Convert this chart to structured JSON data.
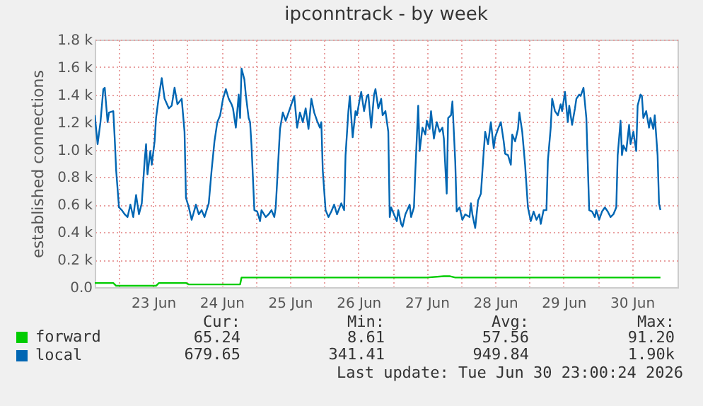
{
  "chart_data": {
    "type": "line",
    "title": "ipconntrack - by week",
    "ylabel": "established connections",
    "xlim": [
      "2026-06-22T15:30",
      "2026-07-01T04:00"
    ],
    "xticks": [
      {
        "value": "2026-06-23T00:00",
        "label": null
      },
      {
        "value": "2026-06-23T12:00",
        "label": "23 Jun"
      },
      {
        "value": "2026-06-24T00:00",
        "label": null
      },
      {
        "value": "2026-06-24T12:00",
        "label": "24 Jun"
      },
      {
        "value": "2026-06-25T00:00",
        "label": null
      },
      {
        "value": "2026-06-25T12:00",
        "label": "25 Jun"
      },
      {
        "value": "2026-06-26T00:00",
        "label": null
      },
      {
        "value": "2026-06-26T12:00",
        "label": "26 Jun"
      },
      {
        "value": "2026-06-27T00:00",
        "label": null
      },
      {
        "value": "2026-06-27T12:00",
        "label": "27 Jun"
      },
      {
        "value": "2026-06-28T00:00",
        "label": null
      },
      {
        "value": "2026-06-28T12:00",
        "label": "28 Jun"
      },
      {
        "value": "2026-06-29T00:00",
        "label": null
      },
      {
        "value": "2026-06-29T12:00",
        "label": "29 Jun"
      },
      {
        "value": "2026-06-30T00:00",
        "label": null
      },
      {
        "value": "2026-06-30T12:00",
        "label": "30 Jun"
      }
    ],
    "ylim": [
      0,
      1800
    ],
    "yticks": [
      {
        "value": 0,
        "label": "0.0"
      },
      {
        "value": 200,
        "label": "0.2 k"
      },
      {
        "value": 400,
        "label": "0.4 k"
      },
      {
        "value": 600,
        "label": "0.6 k"
      },
      {
        "value": 800,
        "label": "0.8 k"
      },
      {
        "value": 1000,
        "label": "1.0 k"
      },
      {
        "value": 1200,
        "label": "1.2 k"
      },
      {
        "value": 1400,
        "label": "1.4 k"
      },
      {
        "value": 1600,
        "label": "1.6 k"
      },
      {
        "value": 1800,
        "label": "1.8 k"
      }
    ],
    "grid": true,
    "legend": "bottom",
    "line_style": "solid",
    "series": [
      {
        "name": "forward",
        "color": "#00cc00",
        "x": [
          "2026-06-22T15:30",
          "2026-06-22T22:00",
          "2026-06-22T23:00",
          "2026-06-23T00:00",
          "2026-06-23T13:00",
          "2026-06-23T14:00",
          "2026-06-23T23:30",
          "2026-06-24T00:30",
          "2026-06-24T18:30",
          "2026-06-24T19:00",
          "2026-06-25T12:00",
          "2026-06-26T00:00",
          "2026-06-26T12:00",
          "2026-06-27T12:00",
          "2026-06-27T18:00",
          "2026-06-27T20:00",
          "2026-06-27T22:00",
          "2026-06-28T12:00",
          "2026-06-29T12:00",
          "2026-06-30T12:00",
          "2026-06-30T22:00"
        ],
        "values": [
          30,
          30,
          10,
          10,
          10,
          30,
          30,
          20,
          20,
          70,
          70,
          70,
          70,
          70,
          80,
          80,
          70,
          70,
          70,
          70,
          70
        ]
      },
      {
        "name": "local",
        "color": "#0066b3",
        "x": [
          "2026-06-22T15:30",
          "2026-06-22T16:30",
          "2026-06-22T17:30",
          "2026-06-22T18:30",
          "2026-06-22T19:00",
          "2026-06-22T20:00",
          "2026-06-22T20:30",
          "2026-06-22T22:00",
          "2026-06-22T22:30",
          "2026-06-22T23:00",
          "2026-06-23T00:00",
          "2026-06-23T01:00",
          "2026-06-23T02:00",
          "2026-06-23T03:00",
          "2026-06-23T04:00",
          "2026-06-23T05:00",
          "2026-06-23T06:00",
          "2026-06-23T07:00",
          "2026-06-23T08:00",
          "2026-06-23T09:00",
          "2026-06-23T09:30",
          "2026-06-23T10:00",
          "2026-06-23T11:00",
          "2026-06-23T11:30",
          "2026-06-23T12:30",
          "2026-06-23T13:00",
          "2026-06-23T14:00",
          "2026-06-23T15:00",
          "2026-06-23T16:00",
          "2026-06-23T17:30",
          "2026-06-23T18:30",
          "2026-06-23T19:30",
          "2026-06-23T20:30",
          "2026-06-23T22:00",
          "2026-06-23T23:00",
          "2026-06-23T23:30",
          "2026-06-24T00:30",
          "2026-06-24T01:30",
          "2026-06-24T03:00",
          "2026-06-24T04:00",
          "2026-06-24T05:00",
          "2026-06-24T06:00",
          "2026-06-24T07:30",
          "2026-06-24T08:30",
          "2026-06-24T09:30",
          "2026-06-24T10:30",
          "2026-06-24T11:30",
          "2026-06-24T12:30",
          "2026-06-24T13:30",
          "2026-06-24T14:30",
          "2026-06-24T15:30",
          "2026-06-24T16:00",
          "2026-06-24T17:00",
          "2026-06-24T18:00",
          "2026-06-24T18:30",
          "2026-06-24T19:00",
          "2026-06-24T20:00",
          "2026-06-24T20:30",
          "2026-06-24T21:30",
          "2026-06-24T22:00",
          "2026-06-24T22:30",
          "2026-06-24T23:30",
          "2026-06-25T00:30",
          "2026-06-25T01:30",
          "2026-06-25T02:00",
          "2026-06-25T03:30",
          "2026-06-25T04:30",
          "2026-06-25T05:30",
          "2026-06-25T06:30",
          "2026-06-25T07:00",
          "2026-06-25T08:00",
          "2026-06-25T08:30",
          "2026-06-25T09:30",
          "2026-06-25T10:30",
          "2026-06-25T11:30",
          "2026-06-25T12:30",
          "2026-06-25T13:30",
          "2026-06-25T14:30",
          "2026-06-25T15:30",
          "2026-06-25T16:30",
          "2026-06-25T17:30",
          "2026-06-25T18:30",
          "2026-06-25T19:30",
          "2026-06-25T20:30",
          "2026-06-25T21:30",
          "2026-06-25T22:30",
          "2026-06-25T23:00",
          "2026-06-25T23:30",
          "2026-06-26T00:30",
          "2026-06-26T01:30",
          "2026-06-26T02:30",
          "2026-06-26T03:30",
          "2026-06-26T04:30",
          "2026-06-26T06:00",
          "2026-06-26T07:00",
          "2026-06-26T07:30",
          "2026-06-26T08:30",
          "2026-06-26T09:00",
          "2026-06-26T10:00",
          "2026-06-26T11:00",
          "2026-06-26T11:30",
          "2026-06-26T12:30",
          "2026-06-26T13:00",
          "2026-06-26T14:00",
          "2026-06-26T15:00",
          "2026-06-26T15:30",
          "2026-06-26T16:30",
          "2026-06-26T17:30",
          "2026-06-26T18:00",
          "2026-06-26T19:00",
          "2026-06-26T20:00",
          "2026-06-26T20:30",
          "2026-06-26T21:30",
          "2026-06-26T22:30",
          "2026-06-26T23:00",
          "2026-06-26T23:30",
          "2026-06-27T00:30",
          "2026-06-27T01:30",
          "2026-06-27T02:00",
          "2026-06-27T03:00",
          "2026-06-27T03:30",
          "2026-06-27T04:30",
          "2026-06-27T06:00",
          "2026-06-27T06:30",
          "2026-06-27T07:30",
          "2026-06-27T08:00",
          "2026-06-27T09:00",
          "2026-06-27T09:30",
          "2026-06-27T10:30",
          "2026-06-27T11:30",
          "2026-06-27T12:00",
          "2026-06-27T13:00",
          "2026-06-27T13:30",
          "2026-06-27T14:30",
          "2026-06-27T15:30",
          "2026-06-27T16:30",
          "2026-06-27T17:30",
          "2026-06-27T18:00",
          "2026-06-27T19:00",
          "2026-06-27T19:30",
          "2026-06-27T20:30",
          "2026-06-27T21:00",
          "2026-06-27T22:00",
          "2026-06-27T22:30",
          "2026-06-27T23:30",
          "2026-06-28T00:30",
          "2026-06-28T01:30",
          "2026-06-28T03:00",
          "2026-06-28T03:30",
          "2026-06-28T04:00",
          "2026-06-28T05:00",
          "2026-06-28T06:00",
          "2026-06-28T07:00",
          "2026-06-28T08:00",
          "2026-06-28T08:30",
          "2026-06-28T09:30",
          "2026-06-28T10:30",
          "2026-06-28T11:30",
          "2026-06-28T12:00",
          "2026-06-28T13:00",
          "2026-06-28T14:00",
          "2026-06-28T15:00",
          "2026-06-28T15:30",
          "2026-06-28T16:30",
          "2026-06-28T17:30",
          "2026-06-28T18:00",
          "2026-06-28T19:00",
          "2026-06-28T20:00",
          "2026-06-28T20:30",
          "2026-06-28T21:30",
          "2026-06-28T22:30",
          "2026-06-28T23:30",
          "2026-06-29T00:30",
          "2026-06-29T01:30",
          "2026-06-29T02:30",
          "2026-06-29T03:30",
          "2026-06-29T04:00",
          "2026-06-29T05:00",
          "2026-06-29T06:00",
          "2026-06-29T06:30",
          "2026-06-29T07:30",
          "2026-06-29T08:00",
          "2026-06-29T09:00",
          "2026-06-29T10:00",
          "2026-06-29T11:00",
          "2026-06-29T11:30",
          "2026-06-29T12:30",
          "2026-06-29T13:30",
          "2026-06-29T14:00",
          "2026-06-29T15:00",
          "2026-06-29T16:00",
          "2026-06-29T16:30",
          "2026-06-29T17:30",
          "2026-06-29T18:00",
          "2026-06-29T19:00",
          "2026-06-29T20:00",
          "2026-06-29T21:00",
          "2026-06-29T22:00",
          "2026-06-29T23:00",
          "2026-06-29T23:30",
          "2026-06-30T00:30",
          "2026-06-30T01:30",
          "2026-06-30T02:30",
          "2026-06-30T03:30",
          "2026-06-30T04:30",
          "2026-06-30T05:30",
          "2026-06-30T06:30",
          "2026-06-30T07:00",
          "2026-06-30T08:00",
          "2026-06-30T08:30",
          "2026-06-30T09:00",
          "2026-06-30T10:00",
          "2026-06-30T11:00",
          "2026-06-30T11:30",
          "2026-06-30T12:30",
          "2026-06-30T13:30",
          "2026-06-30T14:00",
          "2026-06-30T15:00",
          "2026-06-30T15:30",
          "2026-06-30T16:00",
          "2026-06-30T17:00",
          "2026-06-30T18:00",
          "2026-06-30T18:30",
          "2026-06-30T19:30",
          "2026-06-30T20:00",
          "2026-06-30T21:00",
          "2026-06-30T21:30",
          "2026-06-30T22:00"
        ],
        "values": [
          1250,
          1040,
          1200,
          1440,
          1450,
          1200,
          1270,
          1280,
          1080,
          850,
          580,
          560,
          530,
          510,
          600,
          510,
          670,
          530,
          610,
          920,
          1040,
          820,
          990,
          890,
          1060,
          1230,
          1390,
          1520,
          1370,
          1300,
          1320,
          1450,
          1330,
          1370,
          1130,
          650,
          580,
          490,
          600,
          530,
          560,
          510,
          610,
          850,
          1060,
          1200,
          1250,
          1370,
          1440,
          1370,
          1330,
          1300,
          1160,
          1400,
          1230,
          1590,
          1510,
          1400,
          1230,
          1200,
          1030,
          560,
          550,
          480,
          560,
          510,
          530,
          560,
          510,
          580,
          960,
          1150,
          1270,
          1210,
          1270,
          1330,
          1390,
          1160,
          1270,
          1200,
          1300,
          1150,
          1370,
          1270,
          1210,
          1160,
          1200,
          850,
          560,
          510,
          550,
          600,
          530,
          610,
          560,
          960,
          1280,
          1390,
          1090,
          1280,
          1250,
          1370,
          1420,
          1280,
          1390,
          1400,
          1160,
          1400,
          1440,
          1300,
          1370,
          1250,
          1280,
          1130,
          510,
          580,
          530,
          480,
          560,
          460,
          440,
          530,
          600,
          510,
          580,
          850,
          1320,
          990,
          1160,
          1110,
          1210,
          1150,
          1280,
          1080,
          1200,
          1130,
          1160,
          1080,
          680,
          1230,
          1250,
          1350,
          910,
          550,
          580,
          490,
          530,
          510,
          610,
          530,
          430,
          630,
          680,
          990,
          1130,
          1040,
          1200,
          1010,
          1090,
          1150,
          1200,
          1060,
          970,
          960,
          890,
          1110,
          1060,
          1150,
          1270,
          1130,
          890,
          580,
          480,
          550,
          490,
          530,
          460,
          560,
          560,
          920,
          1160,
          1370,
          1280,
          1250,
          1330,
          1280,
          1420,
          1200,
          1320,
          1180,
          1300,
          1370,
          1400,
          1390,
          1450,
          1230,
          560,
          550,
          510,
          560,
          490,
          550,
          580,
          550,
          510,
          530,
          580,
          960,
          1210,
          960,
          1030,
          990,
          1180,
          1040,
          1130,
          990,
          1320,
          1400,
          1390,
          1230,
          1280,
          1160,
          1230,
          1150,
          1250,
          960,
          610,
          560
        ]
      }
    ],
    "annotations": [
      "Cur:",
      "Min:",
      "Avg:",
      "Max:",
      "65.24",
      "8.61",
      "57.56",
      "91.20",
      "679.65",
      "341.41",
      "949.84",
      "1.90k",
      "Last update: Tue Jun 30 23:00:24 2026"
    ]
  }
}
